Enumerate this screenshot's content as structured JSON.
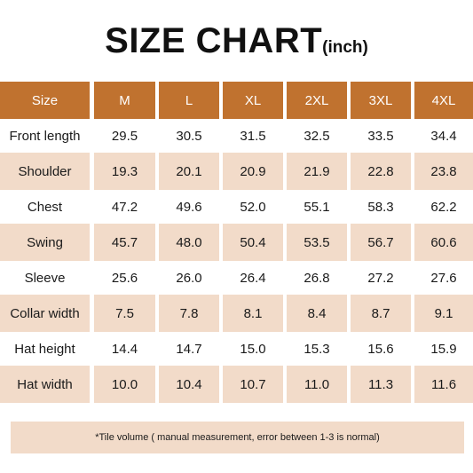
{
  "title": {
    "main": "SIZE CHART",
    "unit": "(inch)"
  },
  "colors": {
    "header_bg": "#c0722f",
    "shaded_bg": "#f2dbc9"
  },
  "table": {
    "header": [
      "Size",
      "M",
      "L",
      "XL",
      "2XL",
      "3XL",
      "4XL"
    ],
    "rows": [
      {
        "label": "Front length",
        "values": [
          "29.5",
          "30.5",
          "31.5",
          "32.5",
          "33.5",
          "34.4"
        ]
      },
      {
        "label": "Shoulder",
        "values": [
          "19.3",
          "20.1",
          "20.9",
          "21.9",
          "22.8",
          "23.8"
        ]
      },
      {
        "label": "Chest",
        "values": [
          "47.2",
          "49.6",
          "52.0",
          "55.1",
          "58.3",
          "62.2"
        ]
      },
      {
        "label": "Swing",
        "values": [
          "45.7",
          "48.0",
          "50.4",
          "53.5",
          "56.7",
          "60.6"
        ]
      },
      {
        "label": "Sleeve",
        "values": [
          "25.6",
          "26.0",
          "26.4",
          "26.8",
          "27.2",
          "27.6"
        ]
      },
      {
        "label": "Collar width",
        "values": [
          "7.5",
          "7.8",
          "8.1",
          "8.4",
          "8.7",
          "9.1"
        ]
      },
      {
        "label": "Hat height",
        "values": [
          "14.4",
          "14.7",
          "15.0",
          "15.3",
          "15.6",
          "15.9"
        ]
      },
      {
        "label": "Hat width",
        "values": [
          "10.0",
          "10.4",
          "10.7",
          "11.0",
          "11.3",
          "11.6"
        ]
      }
    ]
  },
  "note": "*Tile volume ( manual measurement, error between 1-3 is normal)"
}
